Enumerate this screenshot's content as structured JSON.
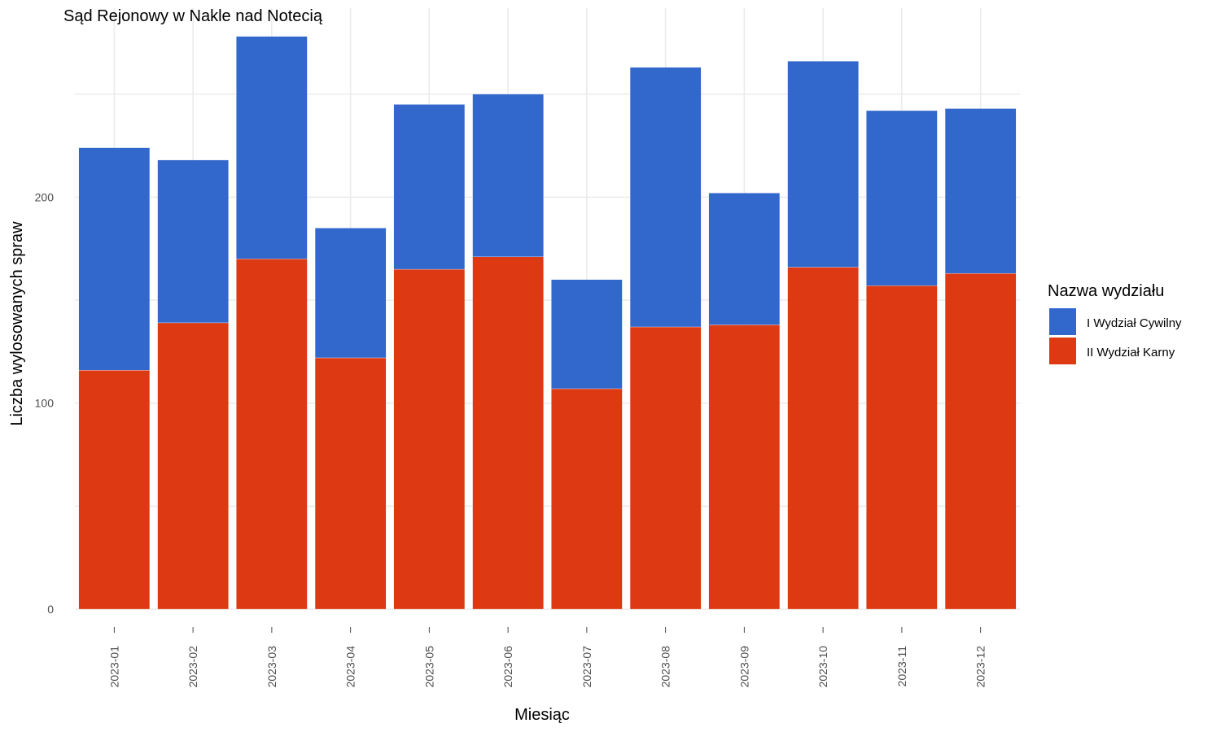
{
  "chart_data": {
    "type": "bar",
    "stacked": true,
    "title": "Sąd Rejonowy w Nakle nad Notecią",
    "xlabel": "Miesiąc",
    "ylabel": "Liczba wylosowanych spraw",
    "ylim": [
      0,
      280
    ],
    "yticks": [
      0,
      100,
      200
    ],
    "grid": true,
    "legend_position": "right",
    "legend_title": "Nazwa wydziału",
    "categories": [
      "2023-01",
      "2023-02",
      "2023-03",
      "2023-04",
      "2023-05",
      "2023-06",
      "2023-07",
      "2023-08",
      "2023-09",
      "2023-10",
      "2023-11",
      "2023-12"
    ],
    "series": [
      {
        "name": "II Wydział Karny",
        "color": "#dd3913",
        "values": [
          116,
          139,
          170,
          122,
          165,
          171,
          107,
          137,
          138,
          166,
          157,
          163
        ]
      },
      {
        "name": "I Wydział Cywilny",
        "color": "#3267cc",
        "values": [
          108,
          79,
          108,
          63,
          80,
          79,
          53,
          126,
          64,
          100,
          85,
          80
        ]
      }
    ]
  }
}
